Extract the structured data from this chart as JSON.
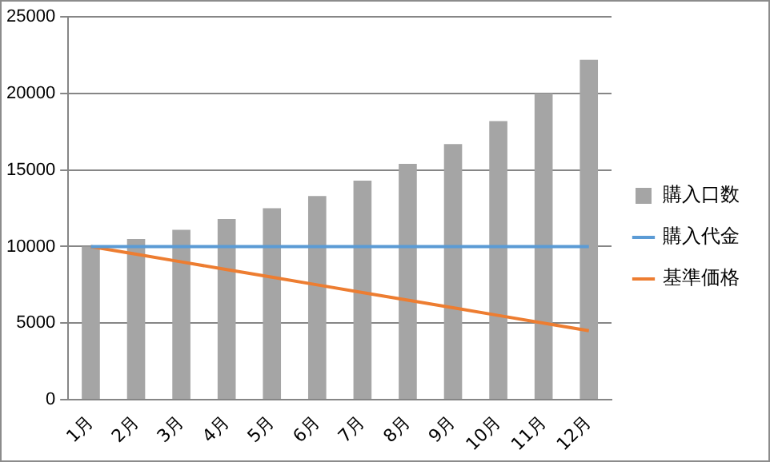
{
  "chart_data": {
    "type": "bar",
    "categories": [
      "1月",
      "2月",
      "3月",
      "4月",
      "5月",
      "6月",
      "7月",
      "8月",
      "9月",
      "10月",
      "11月",
      "12月"
    ],
    "series": [
      {
        "name": "購入口数",
        "color": "#a5a5a5",
        "values": [
          10000,
          10500,
          11100,
          11800,
          12500,
          13300,
          14300,
          15400,
          16700,
          18200,
          20000,
          22200
        ]
      },
      {
        "name": "購入代金",
        "type": "line",
        "color": "#5b9bd5",
        "values": [
          10000,
          10000,
          10000,
          10000,
          10000,
          10000,
          10000,
          10000,
          10000,
          10000,
          10000,
          10000
        ]
      },
      {
        "name": "基準価格",
        "type": "line",
        "color": "#ed7d31",
        "values": [
          10000,
          9500,
          9000,
          8500,
          8000,
          7500,
          7000,
          6500,
          6000,
          5500,
          5000,
          4500
        ]
      }
    ],
    "ylim": [
      0,
      25000
    ],
    "yticks": [
      0,
      5000,
      10000,
      15000,
      20000,
      25000
    ],
    "grid": "y",
    "legend": "right",
    "marker": "none"
  }
}
